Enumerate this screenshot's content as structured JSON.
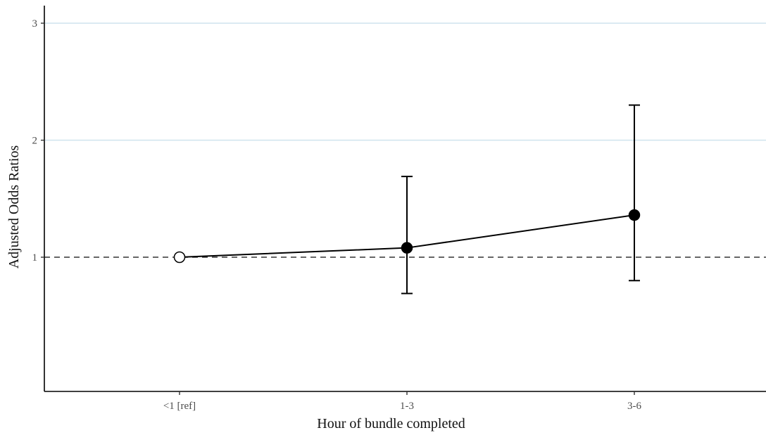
{
  "chart_data": {
    "type": "line",
    "title": "",
    "xlabel": "Hour of bundle completed",
    "ylabel": "Adjusted Odds Ratios",
    "categories": [
      "<1 [ref]",
      "1-3",
      "3-6"
    ],
    "y_ticks": [
      "1",
      "2",
      "3"
    ],
    "ylim": [
      0,
      3.2
    ],
    "reference_line": 1,
    "points": [
      {
        "category": "<1 [ref]",
        "value": 1.0,
        "lower": null,
        "upper": null,
        "marker": "open"
      },
      {
        "category": "1-3",
        "value": 1.08,
        "lower": 0.69,
        "upper": 1.69,
        "marker": "filled"
      },
      {
        "category": "3-6",
        "value": 1.36,
        "lower": 0.8,
        "upper": 2.3,
        "marker": "filled"
      }
    ],
    "grid": "horizontal major lines",
    "colors": {
      "gridline": "#cfe3ee",
      "series": "#000000",
      "reference": "#333333"
    }
  }
}
